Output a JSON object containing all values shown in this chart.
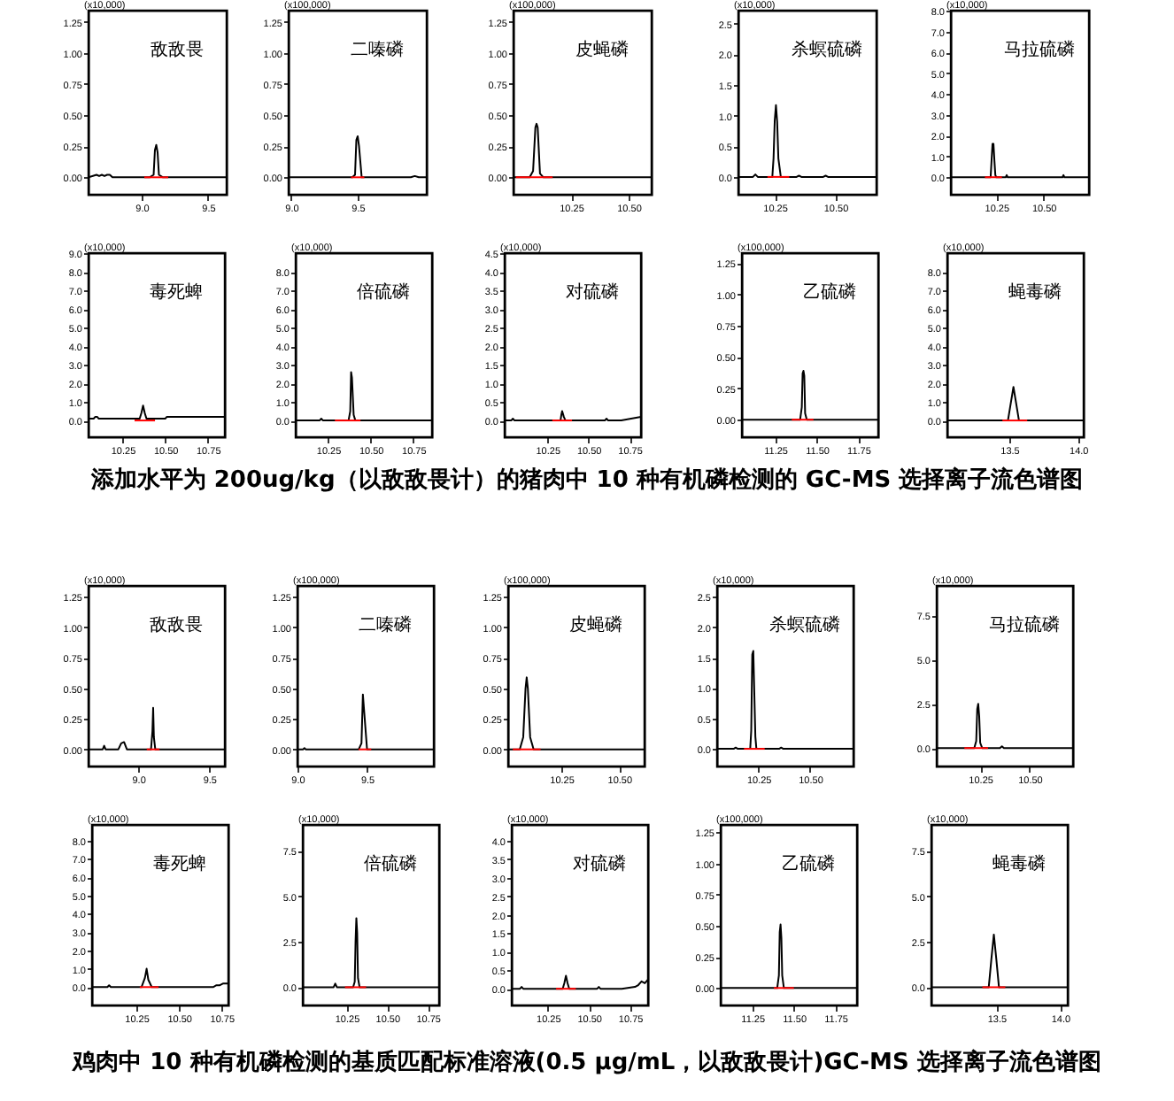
{
  "chart_data": [
    {
      "type": "line",
      "title": "敌敌畏",
      "ylabel": "(x10,000)",
      "xlim": [
        8.6,
        9.64
      ],
      "xticks": [
        {
          "value": 9,
          "label": "9.0"
        },
        9.5
      ],
      "ylim": [
        -0.14,
        1.34
      ],
      "yticks": [
        {
          "value": 0,
          "label": "0.00"
        },
        0.25,
        {
          "value": 0.5,
          "label": "0.50"
        },
        0.75,
        {
          "value": 1,
          "label": "1.00"
        },
        1.25
      ],
      "series": [
        {
          "color": "#000000",
          "x": [
            8.6,
            8.66,
            8.68,
            8.7,
            8.72,
            8.74,
            8.76,
            8.78,
            8.8,
            9.06,
            9.09,
            9.1,
            9.11,
            9.12,
            9.13,
            9.16,
            9.64
          ],
          "values": [
            0,
            0.02,
            0.01,
            0.02,
            0.01,
            0.02,
            0.02,
            0,
            0,
            0,
            0.02,
            0.22,
            0.26,
            0.2,
            0.02,
            0,
            0
          ]
        },
        {
          "color": "#ff0000",
          "x": [
            9.02,
            9.2
          ],
          "values": [
            0,
            0
          ]
        }
      ]
    },
    {
      "type": "line",
      "title": "二嗪磷",
      "ylabel": "(x100,000)",
      "xlim": [
        8.98,
        10.02
      ],
      "xticks": [
        {
          "value": 9,
          "label": "9.0"
        },
        9.5
      ],
      "ylim": [
        -0.14,
        1.34
      ],
      "yticks": [
        {
          "value": 0,
          "label": "0.00"
        },
        0.25,
        {
          "value": 0.5,
          "label": "0.50"
        },
        0.75,
        {
          "value": 1,
          "label": "1.00"
        },
        1.25
      ],
      "series": [
        {
          "color": "#000000",
          "x": [
            8.98,
            9.46,
            9.48,
            9.49,
            9.5,
            9.51,
            9.53,
            9.9,
            9.93,
            9.96,
            10.02
          ],
          "values": [
            0,
            0,
            0.02,
            0.3,
            0.33,
            0.25,
            0,
            0,
            0.01,
            0,
            0
          ]
        },
        {
          "color": "#ff0000",
          "x": [
            9.45,
            9.55
          ],
          "values": [
            0,
            0
          ]
        }
      ]
    },
    {
      "type": "line",
      "title": "皮蝇磷",
      "ylabel": "(x100,000)",
      "xlim": [
        10,
        10.6
      ],
      "xticks": [
        10.25,
        {
          "value": 10.5,
          "label": "10.50"
        }
      ],
      "ylim": [
        -0.14,
        1.34
      ],
      "yticks": [
        {
          "value": 0,
          "label": "0.00"
        },
        0.25,
        {
          "value": 0.5,
          "label": "0.50"
        },
        0.75,
        {
          "value": 1,
          "label": "1.00"
        },
        1.25
      ],
      "series": [
        {
          "color": "#000000",
          "x": [
            10,
            10.07,
            10.085,
            10.095,
            10.1,
            10.105,
            10.115,
            10.13,
            10.6
          ],
          "values": [
            0,
            0,
            0.05,
            0.4,
            0.43,
            0.4,
            0.03,
            0,
            0
          ]
        },
        {
          "color": "#ff0000",
          "x": [
            10.01,
            10.17
          ],
          "values": [
            0,
            0
          ]
        }
      ]
    },
    {
      "type": "line",
      "title": "杀螟硫磷",
      "ylabel": "(x10,000)",
      "xlim": [
        10.1,
        10.67
      ],
      "xticks": [
        10.25,
        {
          "value": 10.5,
          "label": "10.50"
        }
      ],
      "ylim": [
        -0.29,
        2.71
      ],
      "yticks": [
        {
          "value": 0,
          "label": "0.0"
        },
        0.5,
        {
          "value": 1,
          "label": "1.0"
        },
        1.5,
        {
          "value": 2,
          "label": "2.0"
        },
        2.5
      ],
      "series": [
        {
          "color": "#000000",
          "x": [
            10.1,
            10.16,
            10.17,
            10.18,
            10.24,
            10.245,
            10.25,
            10.255,
            10.26,
            10.265,
            10.275,
            10.34,
            10.35,
            10.36,
            10.45,
            10.46,
            10.47,
            10.67
          ],
          "values": [
            0,
            0,
            0.04,
            0,
            0,
            0.3,
            0.92,
            1.17,
            0.9,
            0.3,
            0,
            0,
            0.02,
            0,
            0,
            0.02,
            0,
            0
          ]
        },
        {
          "color": "#ff0000",
          "x": [
            10.22,
            10.31
          ],
          "values": [
            0,
            0
          ]
        }
      ]
    },
    {
      "type": "line",
      "title": "马拉硫磷",
      "ylabel": "(x10,000)",
      "xlim": [
        10.01,
        10.74
      ],
      "xticks": [
        10.25,
        {
          "value": 10.5,
          "label": "10.50"
        }
      ],
      "ylim": [
        -0.84,
        8
      ],
      "yticks": [
        {
          "value": 0,
          "label": "0.0"
        },
        {
          "value": 1,
          "label": "1.0"
        },
        {
          "value": 2,
          "label": "2.0"
        },
        {
          "value": 3,
          "label": "3.0"
        },
        {
          "value": 4,
          "label": "4.0"
        },
        {
          "value": 5,
          "label": "5.0"
        },
        {
          "value": 6,
          "label": "6.0"
        },
        {
          "value": 7,
          "label": "7.0"
        },
        {
          "value": 8,
          "label": "8.0"
        }
      ],
      "series": [
        {
          "color": "#000000",
          "x": [
            10.01,
            10.22,
            10.225,
            10.23,
            10.235,
            10.24,
            10.245,
            10.25,
            10.3,
            10.305,
            10.31,
            10.6,
            10.605,
            10.61,
            10.74
          ],
          "values": [
            0,
            0,
            0.8,
            1.6,
            1.6,
            0.8,
            0.1,
            0,
            0,
            0.1,
            0,
            0,
            0.1,
            0,
            0
          ]
        },
        {
          "color": "#ff0000",
          "x": [
            10.19,
            10.28
          ],
          "values": [
            0,
            0
          ]
        }
      ]
    },
    {
      "type": "line",
      "title": "毒死蜱",
      "ylabel": "(x10,000)",
      "xlim": [
        10.05,
        10.85
      ],
      "xticks": [
        10.25,
        {
          "value": 10.5,
          "label": "10.50"
        },
        10.75
      ],
      "ylim": [
        -0.9,
        9
      ],
      "yticks": [
        {
          "value": 0,
          "label": "0.0"
        },
        {
          "value": 1,
          "label": "1.0"
        },
        {
          "value": 2,
          "label": "2.0"
        },
        {
          "value": 3,
          "label": "3.0"
        },
        {
          "value": 4,
          "label": "4.0"
        },
        {
          "value": 5,
          "label": "5.0"
        },
        {
          "value": 6,
          "label": "6.0"
        },
        {
          "value": 7,
          "label": "7.0"
        },
        {
          "value": 8,
          "label": "8.0"
        },
        {
          "value": 9,
          "label": "9.0"
        }
      ],
      "series": [
        {
          "color": "#000000",
          "x": [
            10.05,
            10.08,
            10.09,
            10.1,
            10.11,
            10.35,
            10.36,
            10.37,
            10.38,
            10.39,
            10.45,
            10.5,
            10.51,
            10.85
          ],
          "values": [
            0.1,
            0.1,
            0.2,
            0.2,
            0.1,
            0.1,
            0.4,
            0.8,
            0.4,
            0.1,
            0.1,
            0.1,
            0.2,
            0.2
          ]
        },
        {
          "color": "#ff0000",
          "x": [
            10.32,
            10.44
          ],
          "values": [
            0,
            0
          ]
        }
      ]
    },
    {
      "type": "line",
      "title": "倍硫磷",
      "ylabel": "(x10,000)",
      "xlim": [
        10.06,
        10.86
      ],
      "xticks": [
        10.25,
        {
          "value": 10.5,
          "label": "10.50"
        },
        10.75
      ],
      "ylim": [
        -0.9,
        9
      ],
      "yticks": [
        {
          "value": 0,
          "label": "0.0"
        },
        {
          "value": 1,
          "label": "1.0"
        },
        {
          "value": 2,
          "label": "2.0"
        },
        {
          "value": 3,
          "label": "3.0"
        },
        {
          "value": 4,
          "label": "4.0"
        },
        {
          "value": 5,
          "label": "5.0"
        },
        {
          "value": 6,
          "label": "6.0"
        },
        {
          "value": 7,
          "label": "7.0"
        },
        {
          "value": 8,
          "label": "8.0"
        }
      ],
      "series": [
        {
          "color": "#000000",
          "x": [
            10.06,
            10.2,
            10.21,
            10.22,
            10.37,
            10.38,
            10.385,
            10.39,
            10.4,
            10.41,
            10.86
          ],
          "values": [
            0,
            0,
            0.1,
            0,
            0,
            0.5,
            2.6,
            2.3,
            0.3,
            0,
            0
          ]
        },
        {
          "color": "#ff0000",
          "x": [
            10.29,
            10.44
          ],
          "values": [
            0,
            0
          ]
        }
      ]
    },
    {
      "type": "line",
      "title": "对硫磷",
      "ylabel": "(x10,000)",
      "xlim": [
        9.99,
        10.82
      ],
      "xticks": [
        10.25,
        {
          "value": 10.5,
          "label": "10.50"
        },
        10.75
      ],
      "ylim": [
        -0.45,
        4.5
      ],
      "yticks": [
        {
          "value": 0,
          "label": "0.0"
        },
        0.5,
        {
          "value": 1,
          "label": "1.0"
        },
        1.5,
        {
          "value": 2,
          "label": "2.0"
        },
        2.5,
        {
          "value": 3,
          "label": "3.0"
        },
        3.5,
        {
          "value": 4,
          "label": "4.0"
        },
        4.5
      ],
      "series": [
        {
          "color": "#000000",
          "x": [
            9.99,
            10.03,
            10.04,
            10.05,
            10.33,
            10.335,
            10.34,
            10.35,
            10.36,
            10.6,
            10.61,
            10.62,
            10.7,
            10.82
          ],
          "values": [
            0,
            0,
            0.05,
            0,
            0,
            0.15,
            0.25,
            0.1,
            0,
            0,
            0.05,
            0,
            0,
            0.1
          ]
        },
        {
          "color": "#ff0000",
          "x": [
            10.28,
            10.4
          ],
          "values": [
            0,
            0
          ]
        }
      ]
    },
    {
      "type": "line",
      "title": "乙硫磷",
      "ylabel": "(x100,000)",
      "xlim": [
        11.05,
        11.87
      ],
      "xticks": [
        11.25,
        {
          "value": 11.5,
          "label": "11.50"
        },
        11.75
      ],
      "ylim": [
        -0.14,
        1.33
      ],
      "yticks": [
        {
          "value": 0,
          "label": "0.00"
        },
        0.25,
        {
          "value": 0.5,
          "label": "0.50"
        },
        0.75,
        {
          "value": 1,
          "label": "1.00"
        },
        1.25
      ],
      "series": [
        {
          "color": "#000000",
          "x": [
            11.05,
            11.4,
            11.41,
            11.415,
            11.42,
            11.425,
            11.43,
            11.44,
            11.87
          ],
          "values": [
            0,
            0,
            0.1,
            0.37,
            0.39,
            0.35,
            0.05,
            0,
            0
          ]
        },
        {
          "color": "#ff0000",
          "x": [
            11.35,
            11.48
          ],
          "values": [
            0,
            0
          ]
        }
      ]
    },
    {
      "type": "line",
      "title": "蝇毒磷",
      "ylabel": "(x10,000)",
      "xlim": [
        13.05,
        14.04
      ],
      "xticks": [
        13.5,
        {
          "value": 14,
          "label": "14.0"
        }
      ],
      "ylim": [
        -0.9,
        9
      ],
      "yticks": [
        {
          "value": 0,
          "label": "0.0"
        },
        {
          "value": 1,
          "label": "1.0"
        },
        {
          "value": 2,
          "label": "2.0"
        },
        {
          "value": 3,
          "label": "3.0"
        },
        {
          "value": 4,
          "label": "4.0"
        },
        {
          "value": 5,
          "label": "5.0"
        },
        {
          "value": 6,
          "label": "6.0"
        },
        {
          "value": 7,
          "label": "7.0"
        },
        {
          "value": 8,
          "label": "8.0"
        }
      ],
      "series": [
        {
          "color": "#000000",
          "x": [
            13.05,
            13.49,
            13.51,
            13.53,
            13.55,
            13.57,
            14.04
          ],
          "values": [
            0,
            0,
            0.9,
            1.8,
            0.9,
            0,
            0
          ]
        },
        {
          "color": "#ff0000",
          "x": [
            13.45,
            13.63
          ],
          "values": [
            0,
            0
          ]
        }
      ],
      "annotations": [
        "添加水平为 200ug/kg（以敌敌畏计）的猪肉中 10 种有机磷检测的 GC-MS 选择离子流色谱图"
      ]
    },
    {
      "type": "line",
      "title": "敌敌畏",
      "ylabel": "(x10,000)",
      "xlim": [
        8.65,
        9.61
      ],
      "xticks": [
        {
          "value": 9,
          "label": "9.0"
        },
        9.5
      ],
      "ylim": [
        -0.14,
        1.34
      ],
      "yticks": [
        {
          "value": 0,
          "label": "0.00"
        },
        0.25,
        {
          "value": 0.5,
          "label": "0.50"
        },
        0.75,
        {
          "value": 1,
          "label": "1.00"
        },
        1.25
      ],
      "series": [
        {
          "color": "#000000",
          "x": [
            8.65,
            8.75,
            8.76,
            8.77,
            8.86,
            8.88,
            8.9,
            8.92,
            9.09,
            9.1,
            9.105,
            9.11,
            9.12,
            9.61
          ],
          "values": [
            0,
            0,
            0.03,
            0,
            0,
            0.05,
            0.06,
            0,
            0,
            0.15,
            0.34,
            0.1,
            0,
            0
          ]
        },
        {
          "color": "#ff0000",
          "x": [
            9.06,
            9.15
          ],
          "values": [
            0,
            0
          ]
        }
      ]
    },
    {
      "type": "line",
      "title": "二嗪磷",
      "ylabel": "(x100,000)",
      "xlim": [
        9,
        9.98
      ],
      "xticks": [
        {
          "value": 9,
          "label": "9.0"
        },
        9.5
      ],
      "ylim": [
        -0.14,
        1.34
      ],
      "yticks": [
        {
          "value": 0,
          "label": "0.00"
        },
        0.25,
        {
          "value": 0.5,
          "label": "0.50"
        },
        0.75,
        {
          "value": 1,
          "label": "1.00"
        },
        1.25
      ],
      "series": [
        {
          "color": "#000000",
          "x": [
            9,
            9.04,
            9.05,
            9.06,
            9.44,
            9.46,
            9.47,
            9.48,
            9.5,
            9.98
          ],
          "values": [
            0,
            0,
            0.01,
            0,
            0,
            0.05,
            0.45,
            0.3,
            0,
            0
          ]
        },
        {
          "color": "#ff0000",
          "x": [
            9.44,
            9.53
          ],
          "values": [
            0,
            0
          ]
        }
      ]
    },
    {
      "type": "line",
      "title": "皮蝇磷",
      "ylabel": "(x100,000)",
      "xlim": [
        10.02,
        10.61
      ],
      "xticks": [
        10.25,
        {
          "value": 10.5,
          "label": "10.50"
        }
      ],
      "ylim": [
        -0.14,
        1.34
      ],
      "yticks": [
        {
          "value": 0,
          "label": "0.00"
        },
        0.25,
        {
          "value": 0.5,
          "label": "0.50"
        },
        0.75,
        {
          "value": 1,
          "label": "1.00"
        },
        1.25
      ],
      "series": [
        {
          "color": "#000000",
          "x": [
            10.02,
            10.07,
            10.085,
            10.095,
            10.1,
            10.105,
            10.115,
            10.13,
            10.61
          ],
          "values": [
            0,
            0,
            0.1,
            0.5,
            0.59,
            0.5,
            0.1,
            0,
            0
          ]
        },
        {
          "color": "#ff0000",
          "x": [
            10.04,
            10.16
          ],
          "values": [
            0,
            0
          ]
        }
      ]
    },
    {
      "type": "line",
      "title": "杀螟硫磷",
      "ylabel": "(x10,000)",
      "xlim": [
        10.05,
        10.71
      ],
      "xticks": [
        10.25,
        {
          "value": 10.5,
          "label": "10.50"
        }
      ],
      "ylim": [
        -0.29,
        2.68
      ],
      "yticks": [
        {
          "value": 0,
          "label": "0.0"
        },
        0.5,
        {
          "value": 1,
          "label": "1.0"
        },
        1.5,
        {
          "value": 2,
          "label": "2.0"
        },
        2.5
      ],
      "series": [
        {
          "color": "#000000",
          "x": [
            10.05,
            10.13,
            10.14,
            10.15,
            10.21,
            10.215,
            10.22,
            10.225,
            10.23,
            10.235,
            10.24,
            10.35,
            10.36,
            10.37,
            10.71
          ],
          "values": [
            0,
            0,
            0.02,
            0,
            0,
            0.3,
            1.55,
            1.61,
            0.9,
            0.2,
            0,
            0,
            0.02,
            0,
            0
          ]
        },
        {
          "color": "#ff0000",
          "x": [
            10.18,
            10.28
          ],
          "values": [
            0,
            0
          ]
        }
      ]
    },
    {
      "type": "line",
      "title": "马拉硫磷",
      "ylabel": "(x10,000)",
      "xlim": [
        10.03,
        10.72
      ],
      "xticks": [
        10.25,
        {
          "value": 10.5,
          "label": "10.50"
        }
      ],
      "ylim": [
        -1.04,
        9.17
      ],
      "yticks": [
        {
          "value": 0,
          "label": "0.0"
        },
        2.5,
        {
          "value": 5,
          "label": "5.0"
        },
        7.5
      ],
      "series": [
        {
          "color": "#000000",
          "x": [
            10.03,
            10.22,
            10.23,
            10.235,
            10.24,
            10.245,
            10.25,
            10.26,
            10.35,
            10.36,
            10.37,
            10.72
          ],
          "values": [
            0,
            0,
            0.4,
            2.2,
            2.5,
            1.8,
            0.3,
            0,
            0,
            0.1,
            0,
            0
          ]
        },
        {
          "color": "#ff0000",
          "x": [
            10.17,
            10.29
          ],
          "values": [
            0,
            0
          ]
        }
      ]
    },
    {
      "type": "line",
      "title": "毒死蜱",
      "ylabel": "(x10,000)",
      "xlim": [
        9.99,
        10.79
      ],
      "xticks": [
        10.25,
        {
          "value": 10.5,
          "label": "10.50"
        },
        10.75
      ],
      "ylim": [
        -1,
        8.85
      ],
      "yticks": [
        {
          "value": 0,
          "label": "0.0"
        },
        {
          "value": 1,
          "label": "1.0"
        },
        {
          "value": 2,
          "label": "2.0"
        },
        {
          "value": 3,
          "label": "3.0"
        },
        {
          "value": 4,
          "label": "4.0"
        },
        {
          "value": 5,
          "label": "5.0"
        },
        {
          "value": 6,
          "label": "6.0"
        },
        {
          "value": 7,
          "label": "7.0"
        },
        {
          "value": 8,
          "label": "8.0"
        }
      ],
      "series": [
        {
          "color": "#000000",
          "x": [
            9.99,
            10.08,
            10.09,
            10.1,
            10.28,
            10.3,
            10.31,
            10.32,
            10.34,
            10.7,
            10.72,
            10.74,
            10.76,
            10.79
          ],
          "values": [
            0,
            0,
            0.1,
            0,
            0,
            0.5,
            1,
            0.4,
            0,
            0,
            0.1,
            0.1,
            0.2,
            0.2
          ]
        },
        {
          "color": "#ff0000",
          "x": [
            10.27,
            10.38
          ],
          "values": [
            0,
            0
          ]
        }
      ]
    },
    {
      "type": "line",
      "title": "倍硫磷",
      "ylabel": "(x10,000)",
      "xlim": [
        9.98,
        10.82
      ],
      "xticks": [
        10.25,
        {
          "value": 10.5,
          "label": "10.50"
        },
        10.75
      ],
      "ylim": [
        -1,
        8.93
      ],
      "yticks": [
        {
          "value": 0,
          "label": "0.0"
        },
        2.5,
        {
          "value": 5,
          "label": "5.0"
        },
        7.5
      ],
      "series": [
        {
          "color": "#000000",
          "x": [
            9.98,
            10.17,
            10.18,
            10.19,
            10.29,
            10.3,
            10.305,
            10.31,
            10.315,
            10.32,
            10.33,
            10.82
          ],
          "values": [
            0,
            0,
            0.2,
            0,
            0,
            0.3,
            2.5,
            3.8,
            3,
            0.5,
            0,
            0
          ]
        },
        {
          "color": "#ff0000",
          "x": [
            10.24,
            10.37
          ],
          "values": [
            0,
            0
          ]
        }
      ]
    },
    {
      "type": "line",
      "title": "对硫磷",
      "ylabel": "(x10,000)",
      "xlim": [
        10.03,
        10.86
      ],
      "xticks": [
        10.25,
        {
          "value": 10.5,
          "label": "10.50"
        },
        10.75
      ],
      "ylim": [
        -0.45,
        4.43
      ],
      "yticks": [
        {
          "value": 0,
          "label": "0.0"
        },
        0.5,
        {
          "value": 1,
          "label": "1.0"
        },
        1.5,
        {
          "value": 2,
          "label": "2.0"
        },
        2.5,
        {
          "value": 3,
          "label": "3.0"
        },
        3.5,
        {
          "value": 4,
          "label": "4.0"
        }
      ],
      "series": [
        {
          "color": "#000000",
          "x": [
            10.03,
            10.08,
            10.09,
            10.1,
            10.34,
            10.35,
            10.36,
            10.37,
            10.38,
            10.55,
            10.56,
            10.57,
            10.7,
            10.78,
            10.8,
            10.82,
            10.84,
            10.86
          ],
          "values": [
            0,
            0,
            0.05,
            0,
            0,
            0.15,
            0.35,
            0.15,
            0,
            0,
            0.05,
            0,
            0,
            0.05,
            0.1,
            0.2,
            0.15,
            0.25
          ]
        },
        {
          "color": "#ff0000",
          "x": [
            10.3,
            10.42
          ],
          "values": [
            0,
            0
          ]
        }
      ]
    },
    {
      "type": "line",
      "title": "乙硫磷",
      "ylabel": "(x100,000)",
      "xlim": [
        11.06,
        11.88
      ],
      "xticks": [
        11.25,
        {
          "value": 11.5,
          "label": "11.50"
        },
        11.75
      ],
      "ylim": [
        -0.14,
        1.31
      ],
      "yticks": [
        {
          "value": 0,
          "label": "0.00"
        },
        0.25,
        {
          "value": 0.5,
          "label": "0.50"
        },
        0.75,
        {
          "value": 1,
          "label": "1.00"
        },
        1.25
      ],
      "series": [
        {
          "color": "#000000",
          "x": [
            11.06,
            11.4,
            11.41,
            11.415,
            11.42,
            11.425,
            11.43,
            11.44,
            11.88
          ],
          "values": [
            0,
            0,
            0.1,
            0.45,
            0.51,
            0.4,
            0.1,
            0,
            0
          ]
        },
        {
          "color": "#ff0000",
          "x": [
            11.38,
            11.5
          ],
          "values": [
            0,
            0
          ]
        }
      ]
    },
    {
      "type": "line",
      "title": "蝇毒磷",
      "ylabel": "(x10,000)",
      "xlim": [
        12.99,
        14.06
      ],
      "xticks": [
        13.5,
        {
          "value": 14,
          "label": "14.0"
        }
      ],
      "ylim": [
        -1,
        8.93
      ],
      "yticks": [
        {
          "value": 0,
          "label": "0.0"
        },
        2.5,
        {
          "value": 5,
          "label": "5.0"
        },
        7.5
      ],
      "series": [
        {
          "color": "#000000",
          "x": [
            12.99,
            13.44,
            13.46,
            13.48,
            13.5,
            13.52,
            14.06
          ],
          "values": [
            0,
            0,
            1.5,
            2.9,
            1.5,
            0,
            0
          ]
        },
        {
          "color": "#ff0000",
          "x": [
            13.39,
            13.57
          ],
          "values": [
            0,
            0
          ]
        }
      ],
      "annotations": [
        "鸡肉中 10 种有机磷检测的基质匹配标准溶液(0.5 μg/mL，以敌敌畏计)GC-MS 选择离子流色谱图"
      ]
    }
  ]
}
